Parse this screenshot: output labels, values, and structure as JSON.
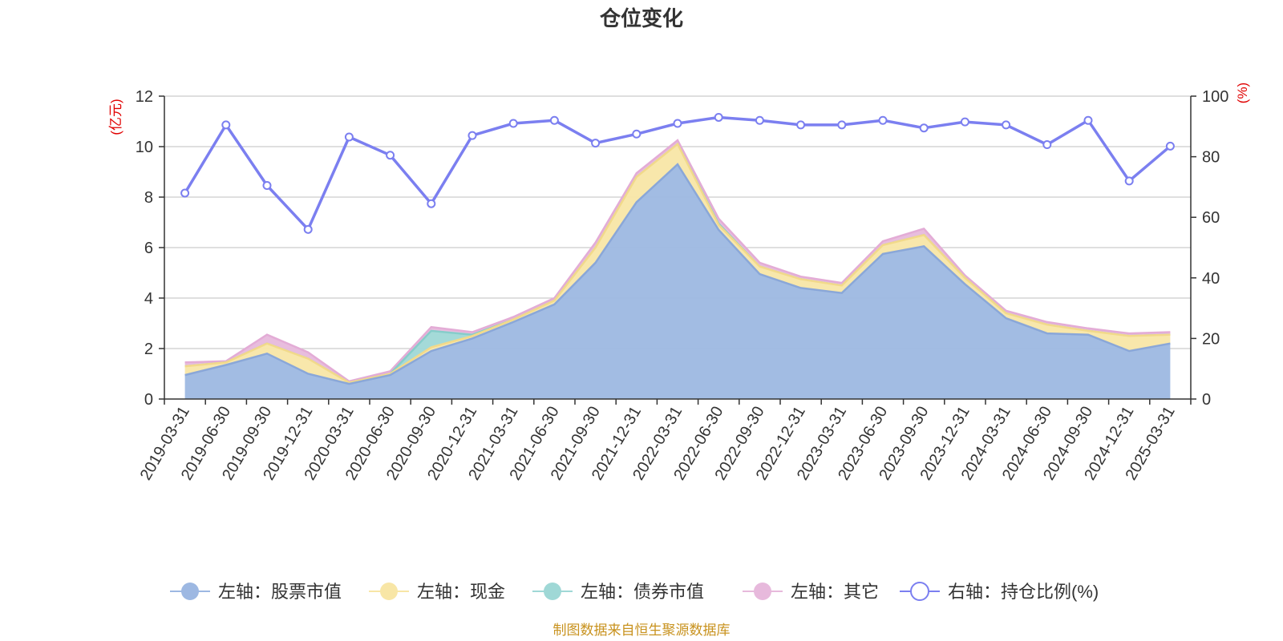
{
  "chart_data": {
    "type": "area",
    "title": "仓位变化",
    "categories": [
      "2019-03-31",
      "2019-06-30",
      "2019-09-30",
      "2019-12-31",
      "2020-03-31",
      "2020-06-30",
      "2020-09-30",
      "2020-12-31",
      "2021-03-31",
      "2021-06-30",
      "2021-09-30",
      "2021-12-31",
      "2022-03-31",
      "2022-06-30",
      "2022-09-30",
      "2022-12-31",
      "2023-03-31",
      "2023-06-30",
      "2023-09-30",
      "2023-12-31",
      "2024-03-31",
      "2024-06-30",
      "2024-09-30",
      "2024-12-31",
      "2025-03-31"
    ],
    "left_axis": {
      "unit": "(亿元)",
      "ylim": [
        0,
        12
      ],
      "ticks": [
        0,
        2,
        4,
        6,
        8,
        10,
        12
      ]
    },
    "right_axis": {
      "unit": "(%)",
      "ylim": [
        0,
        100
      ],
      "ticks": [
        0,
        20,
        40,
        60,
        80,
        100
      ]
    },
    "grid": true,
    "legend_placement": "bottom",
    "series": [
      {
        "name": "左轴：股票市值",
        "axis": "left",
        "color": "#9db8e2",
        "values": [
          0.95,
          1.35,
          1.8,
          1.0,
          0.6,
          0.95,
          1.9,
          2.4,
          3.05,
          3.75,
          5.4,
          7.8,
          9.3,
          6.7,
          4.95,
          4.4,
          4.2,
          5.75,
          6.05,
          4.55,
          3.2,
          2.6,
          2.55,
          1.9,
          2.2
        ]
      },
      {
        "name": "左轴：现金",
        "axis": "left",
        "color": "#f8e6a6",
        "values": [
          0.35,
          0.1,
          0.4,
          0.6,
          0.05,
          0.05,
          0.15,
          0.1,
          0.1,
          0.15,
          0.6,
          1.0,
          0.8,
          0.2,
          0.3,
          0.35,
          0.3,
          0.35,
          0.45,
          0.25,
          0.2,
          0.35,
          0.15,
          0.6,
          0.35
        ]
      },
      {
        "name": "左轴：债券市值",
        "axis": "left",
        "color": "#9fd8d6",
        "values": [
          0,
          0,
          0,
          0,
          0,
          0,
          0.65,
          0.05,
          0,
          0,
          0,
          0,
          0,
          0.05,
          0,
          0,
          0,
          0,
          0,
          0,
          0,
          0,
          0,
          0,
          0
        ]
      },
      {
        "name": "左轴：其它",
        "axis": "left",
        "color": "#e7b9dc",
        "values": [
          0.15,
          0.05,
          0.35,
          0.25,
          0.05,
          0.1,
          0.15,
          0.1,
          0.1,
          0.1,
          0.2,
          0.15,
          0.15,
          0.2,
          0.15,
          0.1,
          0.1,
          0.15,
          0.25,
          0.1,
          0.1,
          0.1,
          0.1,
          0.1,
          0.1
        ]
      }
    ],
    "ratio_series": {
      "name": "右轴：持仓比例(%)",
      "axis": "right",
      "color": "#7b7ff0",
      "values": [
        68,
        90.5,
        70.5,
        56,
        86.5,
        80.5,
        64.5,
        87,
        91,
        92,
        84.5,
        87.5,
        91,
        93,
        92,
        90.5,
        90.5,
        92,
        89.5,
        91.5,
        90.5,
        84,
        92,
        72,
        83.5
      ]
    }
  },
  "source_note": "制图数据来自恒生聚源数据库"
}
